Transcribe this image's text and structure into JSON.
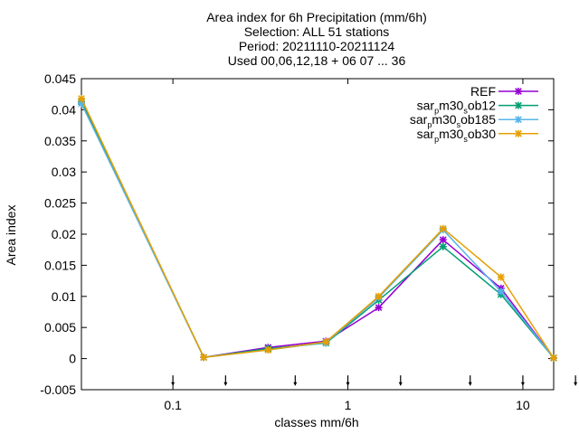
{
  "chart_data": {
    "type": "line",
    "title_lines": [
      "Area index  for 6h Precipitation (mm/6h)",
      "Selection: ALL     51 stations",
      "Period: 20211110-20211124",
      "Used 00,06,12,18 + 06 07 ... 36"
    ],
    "xlabel": "classes mm/6h",
    "ylabel": "Area index",
    "x_scale": "log",
    "xlim": [
      0.03,
      15
    ],
    "ylim": [
      -0.005,
      0.045
    ],
    "x_ticks": [
      {
        "value": 0.1,
        "label": "0.1"
      },
      {
        "value": 1,
        "label": "1"
      },
      {
        "value": 10,
        "label": "10"
      }
    ],
    "y_ticks": [
      {
        "value": 0.045,
        "label": "0.045"
      },
      {
        "value": 0.04,
        "label": "0.04"
      },
      {
        "value": 0.035,
        "label": "0.035"
      },
      {
        "value": 0.03,
        "label": "0.03"
      },
      {
        "value": 0.025,
        "label": "0.025"
      },
      {
        "value": 0.02,
        "label": "0.02"
      },
      {
        "value": 0.015,
        "label": "0.015"
      },
      {
        "value": 0.01,
        "label": "0.01"
      },
      {
        "value": 0.005,
        "label": "0.005"
      },
      {
        "value": 0,
        "label": "0"
      },
      {
        "value": -0.005,
        "label": "-0.005"
      }
    ],
    "class_markers": [
      0.1,
      0.2,
      0.5,
      1,
      2,
      5,
      10,
      20
    ],
    "x": [
      0.03,
      0.15,
      0.35,
      0.75,
      1.5,
      3.5,
      7.5,
      15
    ],
    "series": [
      {
        "name": "REF",
        "legend": [
          "REF"
        ],
        "color": "#9400d3",
        "marker": "x",
        "values": [
          0.0413,
          0.0002,
          0.0018,
          0.0028,
          0.0082,
          0.0191,
          0.0113,
          0.0001
        ]
      },
      {
        "name": "sar_p m30_s ob12",
        "legend": [
          "sar",
          "p",
          "m30",
          "s",
          "ob12"
        ],
        "color": "#009e73",
        "marker": "x",
        "values": [
          0.0413,
          0.0002,
          0.0016,
          0.0025,
          0.0094,
          0.018,
          0.0103,
          0.0001
        ]
      },
      {
        "name": "sar_p m30_s ob185",
        "legend": [
          "sar",
          "p",
          "m30",
          "s",
          "ob185"
        ],
        "color": "#56b4e9",
        "marker": "x",
        "values": [
          0.041,
          0.0002,
          0.0014,
          0.0026,
          0.0098,
          0.0207,
          0.0108,
          0.0001
        ]
      },
      {
        "name": "sar_p m30_s ob30",
        "legend": [
          "sar",
          "p",
          "m30",
          "s",
          "ob30"
        ],
        "color": "#e69f00",
        "marker": "x",
        "values": [
          0.0418,
          0.0002,
          0.0014,
          0.0027,
          0.01,
          0.0209,
          0.0131,
          0.0001
        ]
      }
    ],
    "grid": false,
    "legend_position": "top-right"
  }
}
